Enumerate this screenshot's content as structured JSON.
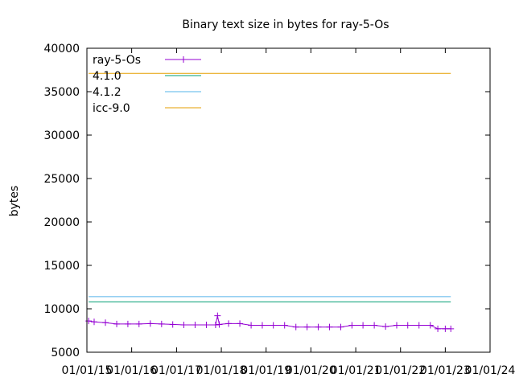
{
  "chart_data": {
    "type": "line",
    "title": "Binary text size in bytes for ray-5-Os",
    "xlabel": "",
    "ylabel": "bytes",
    "ylim": [
      5000,
      40000
    ],
    "xlim": [
      "2015-01-01",
      "2024-01-01"
    ],
    "y_ticks": [
      "5000",
      "10000",
      "15000",
      "20000",
      "25000",
      "30000",
      "35000",
      "40000"
    ],
    "x_ticks": [
      {
        "date": "2015-01-01",
        "label": "01/01/15"
      },
      {
        "date": "2016-01-01",
        "label": "01/01/16"
      },
      {
        "date": "2017-01-01",
        "label": "01/01/17"
      },
      {
        "date": "2018-01-01",
        "label": "01/01/18"
      },
      {
        "date": "2019-01-01",
        "label": "01/01/19"
      },
      {
        "date": "2020-01-01",
        "label": "01/01/20"
      },
      {
        "date": "2021-01-01",
        "label": "01/01/21"
      },
      {
        "date": "2022-01-01",
        "label": "01/01/22"
      },
      {
        "date": "2023-01-01",
        "label": "01/01/23"
      },
      {
        "date": "2024-01-01",
        "label": "01/01/24"
      }
    ],
    "grid": false,
    "legend_position": "top-left",
    "series": [
      {
        "name": "ray-5-Os",
        "color": "#9400d3",
        "marker": "plus",
        "points": [
          {
            "x": "2015-01-15",
            "y": 8600
          },
          {
            "x": "2015-03-01",
            "y": 8500
          },
          {
            "x": "2015-06-01",
            "y": 8400
          },
          {
            "x": "2015-09-01",
            "y": 8250
          },
          {
            "x": "2015-12-01",
            "y": 8250
          },
          {
            "x": "2016-03-01",
            "y": 8250
          },
          {
            "x": "2016-06-01",
            "y": 8300
          },
          {
            "x": "2016-09-01",
            "y": 8250
          },
          {
            "x": "2016-12-01",
            "y": 8200
          },
          {
            "x": "2017-03-01",
            "y": 8150
          },
          {
            "x": "2017-06-01",
            "y": 8150
          },
          {
            "x": "2017-09-01",
            "y": 8150
          },
          {
            "x": "2017-11-15",
            "y": 8150
          },
          {
            "x": "2017-12-01",
            "y": 9200
          },
          {
            "x": "2017-12-15",
            "y": 8200
          },
          {
            "x": "2018-03-01",
            "y": 8300
          },
          {
            "x": "2018-06-01",
            "y": 8300
          },
          {
            "x": "2018-09-01",
            "y": 8100
          },
          {
            "x": "2018-12-01",
            "y": 8100
          },
          {
            "x": "2019-03-01",
            "y": 8100
          },
          {
            "x": "2019-06-01",
            "y": 8100
          },
          {
            "x": "2019-09-01",
            "y": 7900
          },
          {
            "x": "2019-12-01",
            "y": 7900
          },
          {
            "x": "2020-03-01",
            "y": 7900
          },
          {
            "x": "2020-06-01",
            "y": 7900
          },
          {
            "x": "2020-09-01",
            "y": 7900
          },
          {
            "x": "2020-12-01",
            "y": 8100
          },
          {
            "x": "2021-03-01",
            "y": 8100
          },
          {
            "x": "2021-06-01",
            "y": 8100
          },
          {
            "x": "2021-09-01",
            "y": 7950
          },
          {
            "x": "2021-12-01",
            "y": 8100
          },
          {
            "x": "2022-03-01",
            "y": 8100
          },
          {
            "x": "2022-06-01",
            "y": 8100
          },
          {
            "x": "2022-09-01",
            "y": 8100
          },
          {
            "x": "2022-11-01",
            "y": 7700
          },
          {
            "x": "2023-01-01",
            "y": 7700
          },
          {
            "x": "2023-02-15",
            "y": 7700
          }
        ]
      },
      {
        "name": "4.1.0",
        "color": "#009e73",
        "points": [
          {
            "x": "2015-01-15",
            "y": 10800
          },
          {
            "x": "2023-02-15",
            "y": 10800
          }
        ]
      },
      {
        "name": "4.1.2",
        "color": "#56b4e9",
        "points": [
          {
            "x": "2015-01-15",
            "y": 11400
          },
          {
            "x": "2023-02-15",
            "y": 11400
          }
        ]
      },
      {
        "name": "icc-9.0",
        "color": "#e69f00",
        "points": [
          {
            "x": "2015-01-15",
            "y": 37100
          },
          {
            "x": "2023-02-15",
            "y": 37100
          }
        ]
      }
    ]
  }
}
